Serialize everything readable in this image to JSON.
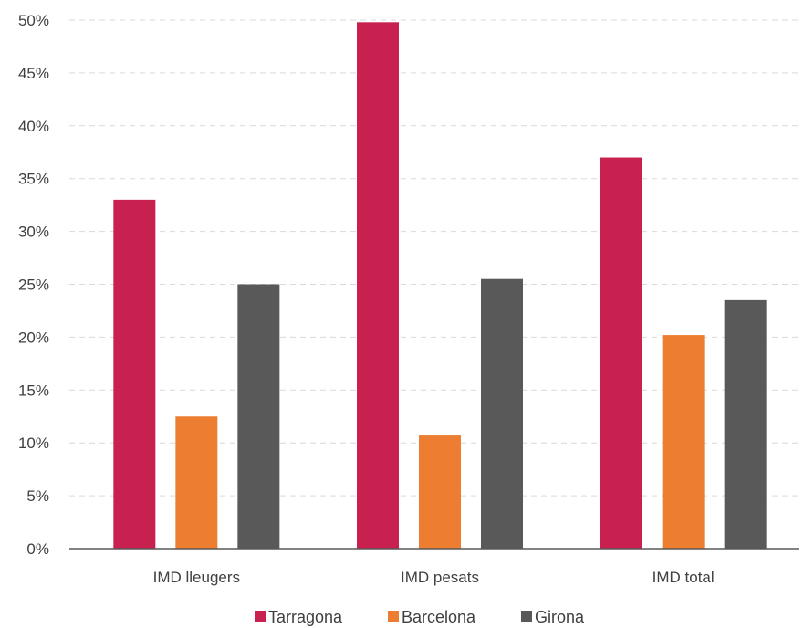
{
  "chart_data": {
    "type": "bar",
    "title": "",
    "xlabel": "",
    "ylabel": "",
    "categories": [
      "IMD lleugers",
      "IMD pesats",
      "IMD total"
    ],
    "series": [
      {
        "name": "Tarragona",
        "color": "#c8204f",
        "values": [
          33,
          49.8,
          37
        ]
      },
      {
        "name": "Barcelona",
        "color": "#ed7d31",
        "values": [
          12.5,
          10.7,
          20.2
        ]
      },
      {
        "name": "Girona",
        "color": "#595959",
        "values": [
          25,
          25.5,
          23.5
        ]
      }
    ],
    "ylim": [
      0,
      50
    ],
    "yticks": [
      "0%",
      "5%",
      "10%",
      "15%",
      "20%",
      "25%",
      "30%",
      "35%",
      "40%",
      "45%",
      "50%"
    ],
    "grid": true,
    "legend": "bottom-center"
  }
}
